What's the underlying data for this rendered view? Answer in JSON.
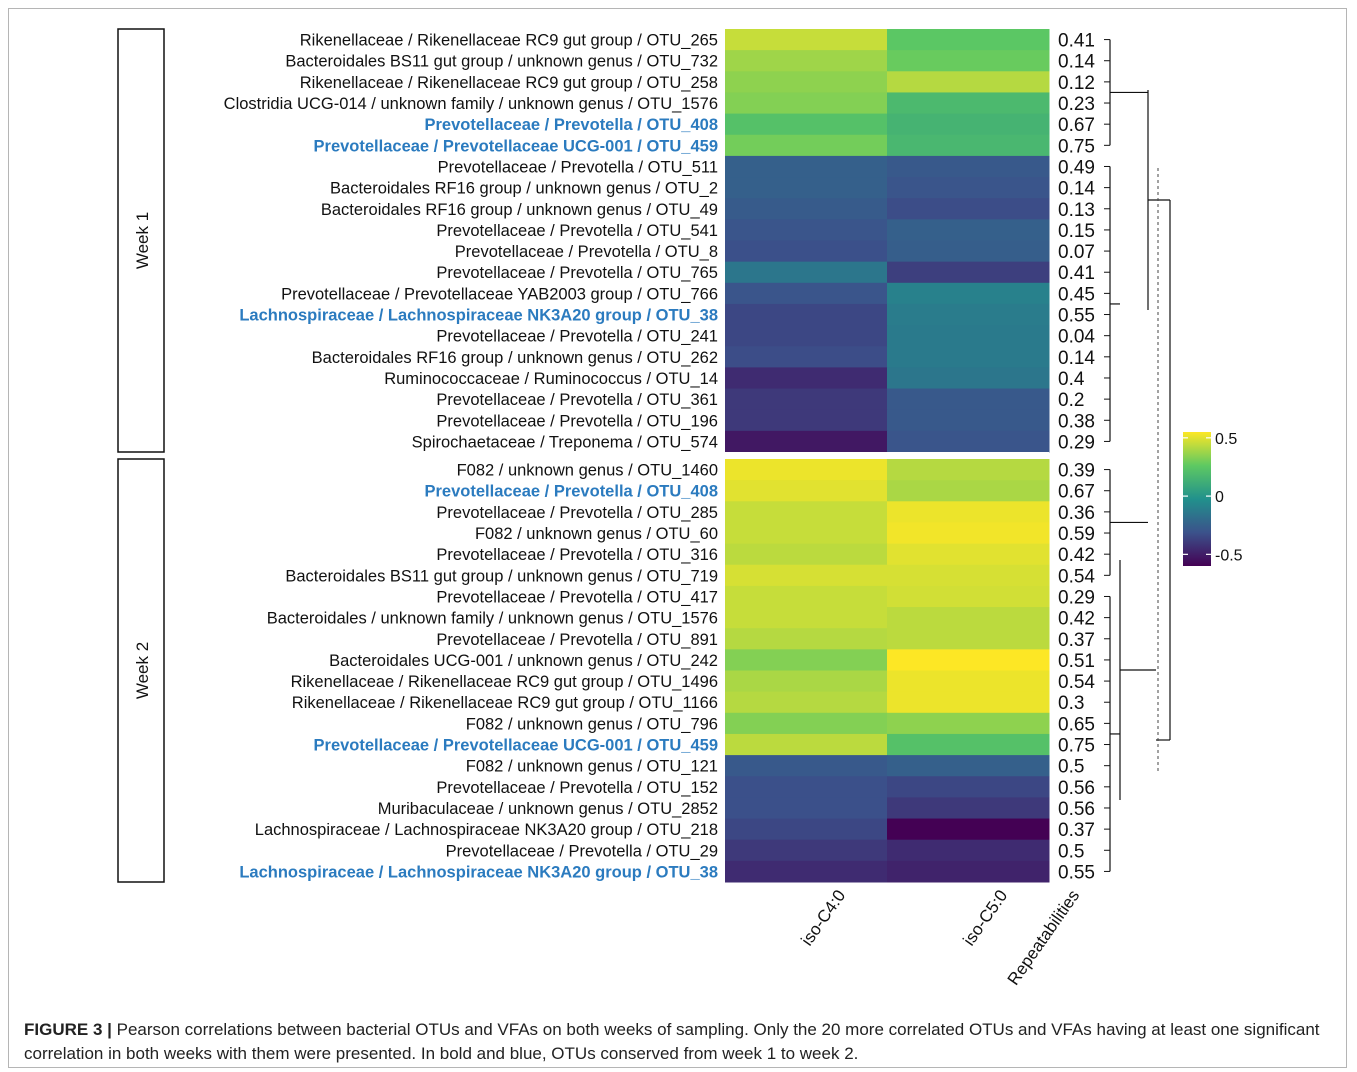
{
  "chart_data": {
    "type": "heatmap",
    "columns": [
      "iso-C4:0",
      "iso-C5:0"
    ],
    "annotation_column": "Repeatabilities",
    "colorbar": {
      "ticks": [
        "0.5",
        "0",
        "-0.5"
      ],
      "range": [
        -0.6,
        0.55
      ],
      "colors": [
        "#440154",
        "#3b528b",
        "#21918c",
        "#5ec962",
        "#fde725"
      ],
      "position": "right"
    },
    "groups": [
      {
        "label": "Week 1",
        "rows": [
          {
            "label": "Rikenellaceae / Rikenellaceae RC9 gut group / OTU_265",
            "values": [
              0.45,
              0.25
            ],
            "rep": "0.41",
            "highlight": false
          },
          {
            "label": "Bacteroidales BS11 gut group / unknown genus / OTU_732",
            "values": [
              0.38,
              0.28
            ],
            "rep": "0.14",
            "highlight": false
          },
          {
            "label": "Rikenellaceae / Rikenellaceae RC9 gut group / OTU_258",
            "values": [
              0.35,
              0.42
            ],
            "rep": "0.12",
            "highlight": false
          },
          {
            "label": "Clostridia UCG-014 / unknown family / unknown genus / OTU_1576",
            "values": [
              0.33,
              0.18
            ],
            "rep": "0.23",
            "highlight": false
          },
          {
            "label": "Prevotellaceae / Prevotella / OTU_408",
            "values": [
              0.22,
              0.15
            ],
            "rep": "0.67",
            "highlight": true
          },
          {
            "label": "Prevotellaceae / Prevotellaceae UCG-001 / OTU_459",
            "values": [
              0.3,
              0.17
            ],
            "rep": "0.75",
            "highlight": true
          },
          {
            "label": "Prevotellaceae / Prevotella / OTU_511",
            "values": [
              -0.25,
              -0.28
            ],
            "rep": "0.49",
            "highlight": false
          },
          {
            "label": "Bacteroidales RF16 group / unknown genus / OTU_2",
            "values": [
              -0.25,
              -0.3
            ],
            "rep": "0.14",
            "highlight": false
          },
          {
            "label": "Bacteroidales RF16 group / unknown genus / OTU_49",
            "values": [
              -0.27,
              -0.33
            ],
            "rep": "0.13",
            "highlight": false
          },
          {
            "label": "Prevotellaceae / Prevotella / OTU_541",
            "values": [
              -0.3,
              -0.25
            ],
            "rep": "0.15",
            "highlight": false
          },
          {
            "label": "Prevotellaceae / Prevotella / OTU_8",
            "values": [
              -0.32,
              -0.26
            ],
            "rep": "0.07",
            "highlight": false
          },
          {
            "label": "Prevotellaceae / Prevotella / OTU_765",
            "values": [
              -0.15,
              -0.38
            ],
            "rep": "0.41",
            "highlight": false
          },
          {
            "label": "Prevotellaceae / Prevotellaceae YAB2003 group / OTU_766",
            "values": [
              -0.3,
              -0.1
            ],
            "rep": "0.45",
            "highlight": false
          },
          {
            "label": "Lachnospiraceae / Lachnospiraceae NK3A20 group / OTU_38",
            "values": [
              -0.35,
              -0.12
            ],
            "rep": "0.55",
            "highlight": true
          },
          {
            "label": "Prevotellaceae / Prevotella / OTU_241",
            "values": [
              -0.35,
              -0.13
            ],
            "rep": "0.04",
            "highlight": false
          },
          {
            "label": "Bacteroidales RF16 group / unknown genus / OTU_262",
            "values": [
              -0.33,
              -0.13
            ],
            "rep": "0.14",
            "highlight": false
          },
          {
            "label": "Ruminococcaceae / Ruminococcus / OTU_14",
            "values": [
              -0.45,
              -0.15
            ],
            "rep": "0.4",
            "highlight": false
          },
          {
            "label": "Prevotellaceae / Prevotella / OTU_361",
            "values": [
              -0.4,
              -0.28
            ],
            "rep": "0.2",
            "highlight": false
          },
          {
            "label": "Prevotellaceae / Prevotella / OTU_196",
            "values": [
              -0.4,
              -0.28
            ],
            "rep": "0.38",
            "highlight": false
          },
          {
            "label": "Spirochaetaceae / Treponema / OTU_574",
            "values": [
              -0.52,
              -0.3
            ],
            "rep": "0.29",
            "highlight": false
          }
        ]
      },
      {
        "label": "Week 2",
        "rows": [
          {
            "label": "F082 / unknown genus / OTU_1460",
            "values": [
              0.52,
              0.42
            ],
            "rep": "0.39",
            "highlight": false
          },
          {
            "label": "Prevotellaceae / Prevotella / OTU_408",
            "values": [
              0.5,
              0.4
            ],
            "rep": "0.67",
            "highlight": true
          },
          {
            "label": "Prevotellaceae / Prevotella / OTU_285",
            "values": [
              0.45,
              0.52
            ],
            "rep": "0.36",
            "highlight": false
          },
          {
            "label": "F082 / unknown genus / OTU_60",
            "values": [
              0.45,
              0.53
            ],
            "rep": "0.59",
            "highlight": false
          },
          {
            "label": "Prevotellaceae / Prevotella / OTU_316",
            "values": [
              0.43,
              0.5
            ],
            "rep": "0.42",
            "highlight": false
          },
          {
            "label": "Bacteroidales BS11 gut group / unknown genus / OTU_719",
            "values": [
              0.48,
              0.48
            ],
            "rep": "0.54",
            "highlight": false
          },
          {
            "label": "Prevotellaceae / Prevotella / OTU_417",
            "values": [
              0.45,
              0.47
            ],
            "rep": "0.29",
            "highlight": false
          },
          {
            "label": "Bacteroidales / unknown family / unknown genus / OTU_1576",
            "values": [
              0.45,
              0.43
            ],
            "rep": "0.42",
            "highlight": false
          },
          {
            "label": "Prevotellaceae / Prevotella / OTU_891",
            "values": [
              0.42,
              0.43
            ],
            "rep": "0.37",
            "highlight": false
          },
          {
            "label": "Bacteroidales UCG-001 / unknown genus / OTU_242",
            "values": [
              0.33,
              0.55
            ],
            "rep": "0.51",
            "highlight": false
          },
          {
            "label": "Rikenellaceae / Rikenellaceae RC9 gut group / OTU_1496",
            "values": [
              0.4,
              0.52
            ],
            "rep": "0.54",
            "highlight": false
          },
          {
            "label": "Rikenellaceae / Rikenellaceae RC9 gut group / OTU_1166",
            "values": [
              0.42,
              0.52
            ],
            "rep": "0.3",
            "highlight": false
          },
          {
            "label": "F082 / unknown genus / OTU_796",
            "values": [
              0.33,
              0.35
            ],
            "rep": "0.65",
            "highlight": false
          },
          {
            "label": "Prevotellaceae / Prevotellaceae UCG-001 / OTU_459",
            "values": [
              0.43,
              0.22
            ],
            "rep": "0.75",
            "highlight": true
          },
          {
            "label": "F082 / unknown genus / OTU_121",
            "values": [
              -0.28,
              -0.25
            ],
            "rep": "0.5",
            "highlight": false
          },
          {
            "label": "Prevotellaceae / Prevotella / OTU_152",
            "values": [
              -0.32,
              -0.35
            ],
            "rep": "0.56",
            "highlight": false
          },
          {
            "label": "Muribaculaceae / unknown genus / OTU_2852",
            "values": [
              -0.32,
              -0.4
            ],
            "rep": "0.56",
            "highlight": false
          },
          {
            "label": "Lachnospiraceae / Lachnospiraceae NK3A20 group / OTU_218",
            "values": [
              -0.35,
              -0.6
            ],
            "rep": "0.37",
            "highlight": false
          },
          {
            "label": "Prevotellaceae / Prevotella / OTU_29",
            "values": [
              -0.4,
              -0.45
            ],
            "rep": "0.5",
            "highlight": false
          },
          {
            "label": "Lachnospiraceae / Lachnospiraceae NK3A20 group / OTU_38",
            "values": [
              -0.45,
              -0.48
            ],
            "rep": "0.55",
            "highlight": true
          }
        ]
      }
    ],
    "highlight_color": "#2b7bbf"
  },
  "caption": {
    "label": "FIGURE 3 |",
    "text": "Pearson correlations between bacterial OTUs and VFAs on both weeks of sampling. Only the 20 more correlated OTUs and VFAs having at least one significant correlation in both weeks with them were presented. In bold and blue, OTUs conserved from week 1 to week 2."
  }
}
